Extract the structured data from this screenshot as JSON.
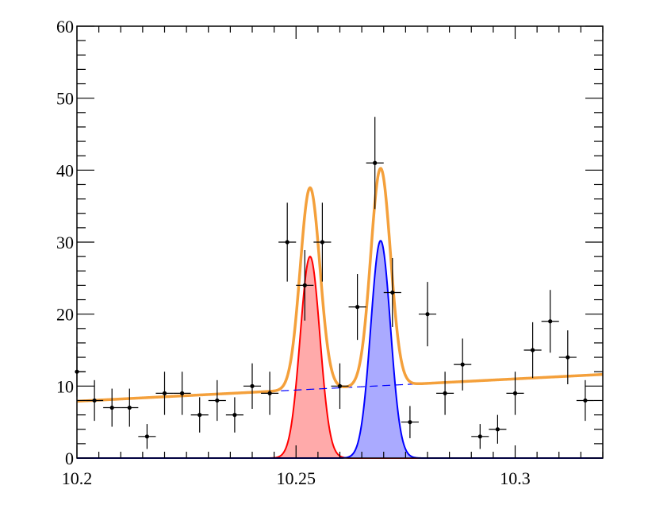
{
  "chart_data": {
    "type": "scatter",
    "title": "",
    "xlabel": "",
    "ylabel": "",
    "xlim": [
      10.2,
      10.32
    ],
    "ylim": [
      0,
      60
    ],
    "xticks": [
      10.2,
      10.25,
      10.3
    ],
    "xtick_labels": [
      "10.2",
      "10.25",
      "10.3"
    ],
    "yticks": [
      0,
      10,
      20,
      30,
      40,
      50,
      60
    ],
    "ytick_labels": [
      "0",
      "10",
      "20",
      "30",
      "40",
      "50",
      "60"
    ],
    "grid": false,
    "bin_width": 0.004,
    "data_points": {
      "x": [
        10.2,
        10.204,
        10.208,
        10.212,
        10.216,
        10.22,
        10.224,
        10.228,
        10.232,
        10.236,
        10.24,
        10.244,
        10.248,
        10.252,
        10.256,
        10.26,
        10.264,
        10.268,
        10.272,
        10.276,
        10.28,
        10.284,
        10.288,
        10.292,
        10.296,
        10.3,
        10.304,
        10.308,
        10.312,
        10.316
      ],
      "y": [
        12,
        8,
        7,
        7,
        3,
        9,
        9,
        6,
        8,
        6,
        10,
        9,
        30,
        24,
        30,
        10,
        21,
        41,
        23,
        5,
        20,
        9,
        13,
        3,
        4,
        9,
        15,
        19,
        14,
        8
      ]
    },
    "components": {
      "background": {
        "color": "#0000ff",
        "style": "dashed",
        "at_10_2": 7.9,
        "slope_per_0_01": 0.31
      },
      "peak1": {
        "color": "#ff0000",
        "fill": "#ffaaaa",
        "mean": 10.2532,
        "sigma": 0.00225,
        "height": 28
      },
      "peak2": {
        "color": "#0000ff",
        "fill": "#aaaaff",
        "mean": 10.2693,
        "sigma": 0.00225,
        "height": 30.2
      },
      "total": {
        "color": "#f4a03b"
      }
    }
  }
}
